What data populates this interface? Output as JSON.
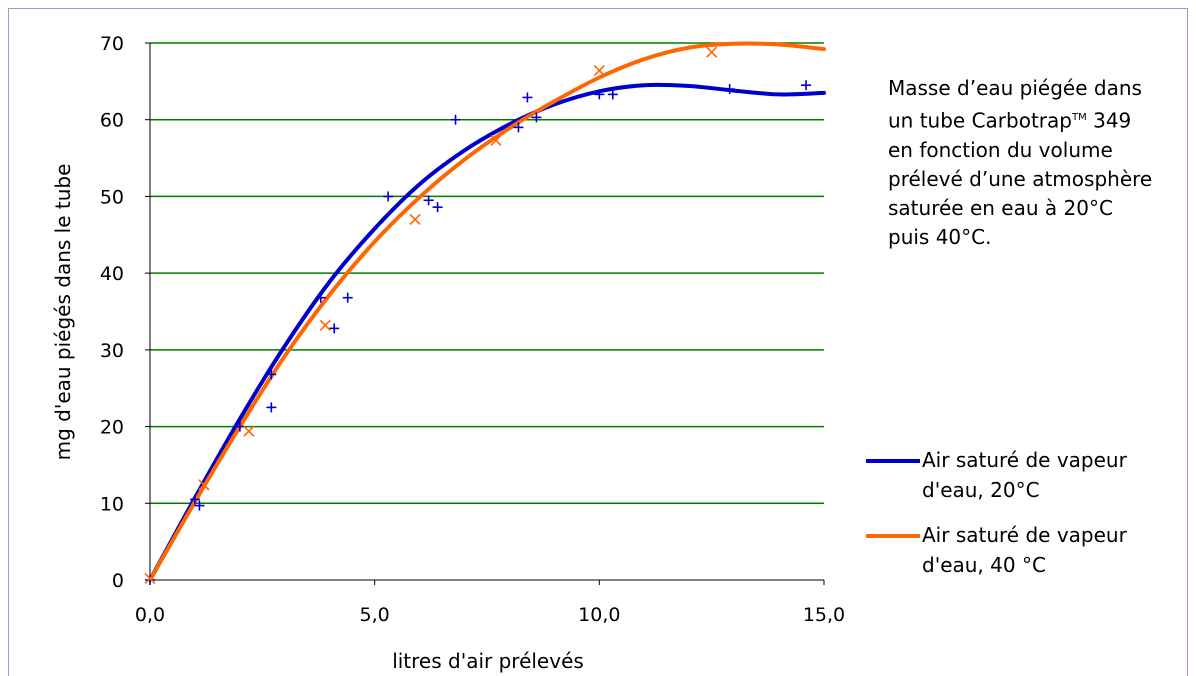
{
  "chart_data": {
    "type": "scatter",
    "xlabel": "litres d'air prélevés",
    "ylabel": "mg d'eau piégés dans le tube",
    "xlim": [
      0,
      15
    ],
    "ylim": [
      0,
      70
    ],
    "x_ticks": [
      0,
      5,
      10,
      15
    ],
    "x_tick_labels": [
      "0,0",
      "5,0",
      "10,0",
      "15,0"
    ],
    "y_ticks": [
      0,
      10,
      20,
      30,
      40,
      50,
      60,
      70
    ],
    "y_tick_labels": [
      "0",
      "10",
      "20",
      "30",
      "40",
      "50",
      "60",
      "70"
    ],
    "grid": "horizontal",
    "grid_color": "#008000",
    "legend_position": "right",
    "series": [
      {
        "name": "Air saturé de vapeur d'eau, 20°C",
        "color": "#0000cc",
        "marker": "plus",
        "points": [
          [
            0.0,
            0.0
          ],
          [
            1.0,
            10.5
          ],
          [
            1.1,
            9.7
          ],
          [
            2.0,
            20.0
          ],
          [
            2.7,
            26.8
          ],
          [
            2.7,
            22.5
          ],
          [
            3.8,
            36.8
          ],
          [
            4.1,
            32.8
          ],
          [
            4.4,
            36.8
          ],
          [
            5.3,
            50.0
          ],
          [
            6.2,
            49.5
          ],
          [
            6.4,
            48.6
          ],
          [
            6.8,
            60.0
          ],
          [
            8.2,
            59.0
          ],
          [
            8.4,
            62.9
          ],
          [
            8.6,
            60.3
          ],
          [
            10.0,
            63.3
          ],
          [
            10.3,
            63.3
          ],
          [
            12.9,
            64.0
          ],
          [
            14.6,
            64.5
          ]
        ],
        "trend": [
          [
            0.0,
            0.0
          ],
          [
            1.0,
            10.7
          ],
          [
            2.0,
            21.0
          ],
          [
            3.0,
            30.5
          ],
          [
            4.0,
            38.9
          ],
          [
            5.0,
            45.8
          ],
          [
            6.0,
            51.6
          ],
          [
            7.0,
            56.0
          ],
          [
            8.0,
            59.4
          ],
          [
            9.0,
            62.0
          ],
          [
            10.0,
            63.7
          ],
          [
            11.0,
            64.5
          ],
          [
            12.0,
            64.4
          ],
          [
            13.0,
            63.8
          ],
          [
            14.0,
            63.3
          ],
          [
            15.0,
            63.5
          ]
        ]
      },
      {
        "name": "Air saturé de vapeur d'eau, 40 °C",
        "color": "#ff6600",
        "marker": "x",
        "points": [
          [
            0.0,
            0.2
          ],
          [
            1.2,
            12.4
          ],
          [
            2.2,
            19.4
          ],
          [
            3.9,
            33.2
          ],
          [
            5.9,
            47.0
          ],
          [
            7.7,
            57.3
          ],
          [
            10.0,
            66.4
          ],
          [
            12.5,
            68.8
          ]
        ],
        "trend": [
          [
            0.0,
            0.0
          ],
          [
            1.0,
            10.2
          ],
          [
            2.0,
            20.0
          ],
          [
            3.0,
            29.2
          ],
          [
            4.0,
            37.2
          ],
          [
            5.0,
            44.1
          ],
          [
            6.0,
            49.9
          ],
          [
            7.0,
            54.8
          ],
          [
            8.0,
            58.9
          ],
          [
            9.0,
            62.4
          ],
          [
            10.0,
            65.5
          ],
          [
            11.0,
            67.9
          ],
          [
            12.0,
            69.4
          ],
          [
            13.0,
            69.9
          ],
          [
            14.0,
            69.8
          ],
          [
            15.0,
            69.2
          ]
        ]
      }
    ]
  },
  "note": {
    "line1": "Masse d’eau piégée dans",
    "line2_before": "un tube Carbotrap",
    "line2_tm": "TM",
    "line2_after": " 349",
    "line3": "en fonction du volume",
    "line4": "prélevé d’une atmosphère",
    "line5": "saturée en eau à 20°C",
    "line6": "puis 40°C."
  },
  "legend": [
    {
      "line1": "Air saturé de vapeur",
      "line2": "d'eau, 20°C",
      "color": "#0000cc"
    },
    {
      "line1": "Air saturé de vapeur",
      "line2": "d'eau, 40 °C",
      "color": "#ff6600"
    }
  ]
}
